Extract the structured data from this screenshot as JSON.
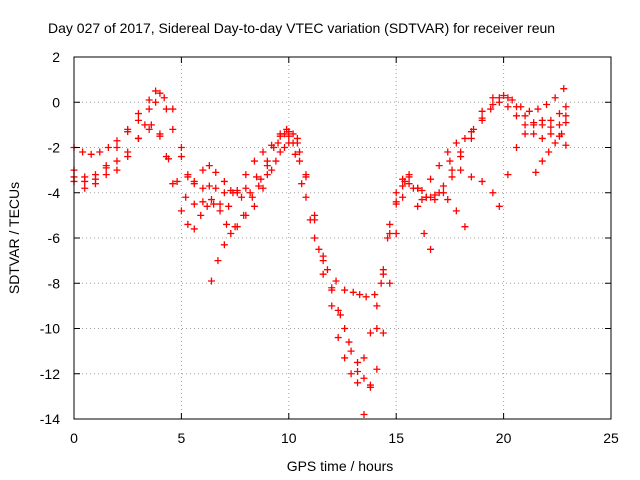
{
  "chart_data": {
    "type": "scatter",
    "title": "Day 027 of 2017, Sidereal Day-to-day VTEC variation (SDTVAR) for receiver reun",
    "xlabel": "GPS time / hours",
    "ylabel": "SDTVAR / TECUs",
    "xlim": [
      0,
      25
    ],
    "ylim": [
      -14,
      2
    ],
    "xticks": [
      0,
      5,
      10,
      15,
      20,
      25
    ],
    "yticks": [
      -14,
      -12,
      -10,
      -8,
      -6,
      -4,
      -2,
      0,
      2
    ],
    "grid": true,
    "marker": "+",
    "color": "#ff0000",
    "series": [
      {
        "x": [
          0.0,
          0.5,
          1.0,
          1.5,
          2.0,
          2.5,
          3.0,
          3.5,
          3.8,
          4.0,
          4.3,
          4.6,
          5.0,
          5.3,
          5.6,
          6.0,
          6.3,
          6.6,
          7.0,
          7.3,
          7.6,
          8.0,
          8.5,
          9.0,
          9.5,
          9.8,
          10.0,
          10.3,
          10.6,
          11.0,
          11.4,
          11.8,
          12.2,
          12.6,
          13.0,
          13.3,
          13.6,
          14.0,
          14.3,
          14.6,
          15.0,
          15.3,
          15.6,
          16.0,
          16.4,
          16.8,
          17.2,
          17.6,
          18.0,
          18.5,
          19.0,
          19.5,
          20.0,
          20.4,
          20.8,
          21.2,
          21.6,
          22.0,
          22.4,
          22.8
        ],
        "y": [
          -3.3,
          -3.5,
          -3.4,
          -2.8,
          -2.0,
          -1.2,
          -0.5,
          0.1,
          0.5,
          0.4,
          -0.3,
          -1.2,
          -2.4,
          -3.2,
          -3.6,
          -3.8,
          -3.7,
          -3.8,
          -4.0,
          -3.9,
          -3.9,
          -3.8,
          -3.3,
          -2.8,
          -1.8,
          -1.4,
          -1.5,
          -2.3,
          -3.6,
          -5.2,
          -6.5,
          -7.4,
          -7.9,
          -8.3,
          -8.4,
          -8.5,
          -8.6,
          -8.5,
          -8.0,
          -6.0,
          -4.5,
          -3.7,
          -3.3,
          -3.8,
          -4.2,
          -4.1,
          -3.7,
          -3.0,
          -2.2,
          -1.3,
          -0.4,
          0.2,
          0.3,
          0.1,
          -0.2,
          -0.4,
          -0.3,
          -0.1,
          0.2,
          0.6
        ]
      },
      {
        "x": [
          0.0,
          0.4,
          0.8,
          1.2,
          1.6,
          2.0,
          2.5,
          3.0,
          3.5,
          3.8,
          4.2,
          4.6,
          5.0,
          5.3,
          5.6,
          6.0,
          6.3,
          6.6,
          7.0,
          7.4,
          7.8,
          8.2,
          8.6,
          9.0,
          9.4,
          9.8,
          10.2,
          10.5,
          10.8,
          11.2,
          11.6,
          12.0,
          12.4,
          12.8,
          13.2,
          13.5,
          13.8,
          14.1,
          14.4,
          14.7,
          15.0,
          15.3,
          15.6,
          16.0,
          16.4,
          16.8,
          17.2,
          17.6,
          18.0,
          18.5,
          19.0,
          19.5,
          19.8,
          20.2,
          20.6,
          21.0,
          21.4,
          21.8,
          22.2,
          22.6,
          22.9
        ],
        "y": [
          -2.0,
          -2.2,
          -2.3,
          -2.2,
          -2.0,
          -1.7,
          -1.3,
          -0.8,
          -0.3,
          0.0,
          0.2,
          -0.3,
          -2.0,
          -3.3,
          -3.5,
          -3.0,
          -2.8,
          -3.1,
          -3.5,
          -4.0,
          -4.2,
          -4.0,
          -3.7,
          -3.2,
          -2.6,
          -2.0,
          -1.8,
          -2.2,
          -3.3,
          -5.0,
          -6.8,
          -8.2,
          -9.4,
          -10.6,
          -11.5,
          -12.2,
          -12.5,
          -11.8,
          -10.2,
          -8.0,
          -5.8,
          -4.2,
          -3.6,
          -3.8,
          -4.2,
          -4.3,
          -4.0,
          -3.3,
          -2.4,
          -1.6,
          -0.8,
          -0.1,
          0.2,
          0.2,
          -0.2,
          -0.6,
          -0.9,
          -1.0,
          -0.8,
          -0.5,
          -0.2
        ]
      },
      {
        "x": [
          0.0,
          0.5,
          1.0,
          1.5,
          2.0,
          2.5,
          3.0,
          3.3,
          3.6,
          4.0,
          4.3,
          4.6,
          5.0,
          5.3,
          5.6,
          5.9,
          6.2,
          6.5,
          6.8,
          7.1,
          7.5,
          7.9,
          8.3,
          8.7,
          9.0,
          9.3,
          9.6,
          9.9,
          10.2,
          10.5,
          10.8,
          11.2,
          11.6,
          12.0,
          12.3,
          12.6,
          12.9,
          13.2,
          13.5,
          13.8,
          14.1,
          14.4,
          14.7,
          15.0,
          15.3,
          15.6,
          16.0,
          16.3,
          16.6
        ],
        "y": [
          -3.5,
          -3.8,
          -3.6,
          -3.2,
          -3.0,
          -2.4,
          -1.6,
          -1.0,
          -1.0,
          -1.4,
          -2.4,
          -3.6,
          -4.8,
          -5.4,
          -5.6,
          -5.0,
          -4.6,
          -4.5,
          -4.8,
          -5.4,
          -5.5,
          -5.0,
          -4.2,
          -3.4,
          -2.6,
          -2.0,
          -1.4,
          -1.2,
          -1.4,
          -2.6,
          -4.2,
          -6.0,
          -7.6,
          -9.0,
          -10.4,
          -11.3,
          -12.0,
          -11.9,
          -11.3,
          -10.2,
          -9.0,
          -7.4,
          -5.8,
          -4.4,
          -3.4,
          -3.2,
          -4.6,
          -5.8,
          -6.5
        ]
      },
      {
        "x": [
          0.0,
          0.5,
          1.0,
          1.5,
          2.0,
          2.5,
          3.0,
          3.5,
          4.0,
          4.4,
          4.8,
          5.2,
          5.6,
          6.0,
          6.4,
          6.8,
          7.2,
          7.6,
          8.0,
          8.4,
          8.8,
          9.2,
          9.6,
          10.0,
          10.4,
          10.8,
          11.2,
          11.6,
          12.0,
          12.3,
          12.6,
          12.9,
          13.2,
          13.5,
          13.8,
          14.1,
          14.4,
          14.7,
          15.0,
          15.4,
          15.8,
          16.2,
          16.6,
          17.0,
          17.4,
          17.8,
          18.2
        ],
        "y": [
          -3.0,
          -3.3,
          -3.2,
          -2.9,
          -2.6,
          -2.2,
          -1.6,
          -1.2,
          -1.5,
          -2.5,
          -3.5,
          -4.2,
          -4.5,
          -4.4,
          -4.3,
          -4.5,
          -4.6,
          -4.0,
          -3.2,
          -2.6,
          -2.2,
          -1.9,
          -1.5,
          -1.3,
          -1.8,
          -3.2,
          -5.2,
          -7.0,
          -8.3,
          -9.2,
          -10.0,
          -11.0,
          -12.4,
          -13.8,
          -12.6,
          -10.0,
          -7.6,
          -5.4,
          -4.0,
          -3.5,
          -3.8,
          -4.3,
          -4.2,
          -4.0,
          -4.3,
          -4.8,
          -5.5
        ]
      },
      {
        "x": [
          6.4,
          6.7,
          7.0,
          7.3,
          7.6,
          8.0,
          8.4,
          8.8,
          9.2,
          9.6,
          10.0,
          10.4
        ],
        "y": [
          -7.9,
          -7.0,
          -6.3,
          -5.8,
          -5.5,
          -5.0,
          -4.6,
          -3.8,
          -3.0,
          -2.2,
          -1.8,
          -1.6
        ]
      },
      {
        "x": [
          16.2,
          16.6,
          17.0,
          17.4,
          17.8,
          18.2,
          18.6,
          19.0,
          19.4,
          19.8,
          20.2,
          20.6,
          21.0,
          21.4,
          21.8,
          22.2,
          22.6,
          22.9
        ],
        "y": [
          -3.9,
          -3.4,
          -2.8,
          -2.2,
          -1.8,
          -1.6,
          -1.2,
          -0.7,
          -0.3,
          0.0,
          -0.2,
          -0.6,
          -1.0,
          -1.4,
          -1.6,
          -1.4,
          -1.0,
          -0.6
        ]
      },
      {
        "x": [
          17.5,
          18.0,
          18.5,
          19.0,
          19.5,
          19.8,
          20.2,
          20.6,
          21.0,
          21.4,
          21.8,
          22.2,
          22.6,
          22.9
        ],
        "y": [
          -2.6,
          -3.0,
          -3.3,
          -3.5,
          -4.0,
          -4.6,
          -3.2,
          -2.0,
          -1.4,
          -1.0,
          -0.8,
          -1.1,
          -1.5,
          -1.9
        ]
      },
      {
        "x": [
          21.5,
          21.8,
          22.1,
          22.4,
          22.7,
          22.9
        ],
        "y": [
          -3.1,
          -2.6,
          -2.2,
          -1.8,
          -1.4,
          -0.9
        ]
      }
    ]
  }
}
